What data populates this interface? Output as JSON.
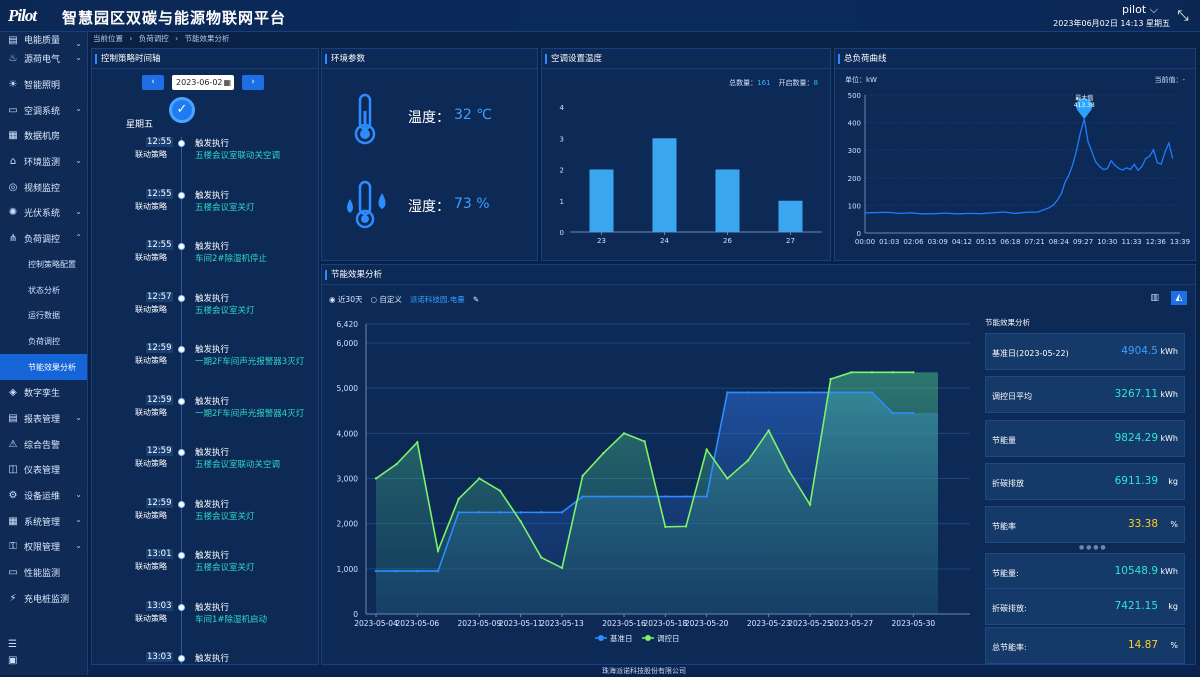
{
  "header": {
    "logo": "Pilot",
    "title": "智慧园区双碳与能源物联网平台",
    "user": "pilot ⌵",
    "datetime": "2023年06月02日 14:13 星期五"
  },
  "sidebar": {
    "items": [
      {
        "label": "电能质量",
        "icon": "power-quality-icon",
        "chev": true
      },
      {
        "label": "源荷电气",
        "icon": "flame-icon",
        "chev": true
      },
      {
        "label": "智能照明",
        "icon": "bulb-icon",
        "chev": false
      },
      {
        "label": "空调系统",
        "icon": "ac-icon",
        "chev": true
      },
      {
        "label": "数据机房",
        "icon": "server-icon",
        "chev": false
      },
      {
        "label": "环境监测",
        "icon": "env-icon",
        "chev": true
      },
      {
        "label": "视频监控",
        "icon": "camera-icon",
        "chev": false
      },
      {
        "label": "光伏系统",
        "icon": "sun-icon",
        "chev": true
      },
      {
        "label": "负荷调控",
        "icon": "network-icon",
        "chev": true,
        "expanded": true
      }
    ],
    "subitems": [
      "控制策略配置",
      "状态分析",
      "运行数据",
      "负荷调控",
      "节能效果分析"
    ],
    "items2": [
      {
        "label": "数字孪生",
        "icon": "twin-icon",
        "chev": false
      },
      {
        "label": "报表管理",
        "icon": "report-icon",
        "chev": true
      },
      {
        "label": "综合告警",
        "icon": "alarm-icon",
        "chev": false
      },
      {
        "label": "仪表管理",
        "icon": "meter-icon",
        "chev": false
      },
      {
        "label": "设备运维",
        "icon": "wrench-icon",
        "chev": true
      },
      {
        "label": "系统管理",
        "icon": "system-icon",
        "chev": true
      },
      {
        "label": "权限管理",
        "icon": "key-icon",
        "chev": true
      },
      {
        "label": "性能监测",
        "icon": "monitor-icon",
        "chev": false
      },
      {
        "label": "充电桩监测",
        "icon": "charger-icon",
        "chev": false
      }
    ]
  },
  "breadcrumb": [
    "当前位置",
    "›",
    "负荷调控",
    "›",
    "节能效果分析"
  ],
  "timeline": {
    "title": "控制策略时间轴",
    "date": "2023-06-02",
    "prev": "‹",
    "next": "›",
    "weekday": "星期五",
    "items": [
      {
        "time": "12:55",
        "strategy": "联动策略",
        "action": "触发执行",
        "desc": "五楼会议室联动关空调"
      },
      {
        "time": "12:55",
        "strategy": "联动策略",
        "action": "触发执行",
        "desc": "五楼会议室关灯"
      },
      {
        "time": "12:55",
        "strategy": "联动策略",
        "action": "触发执行",
        "desc": "车间2#除湿机停止"
      },
      {
        "time": "12:57",
        "strategy": "联动策略",
        "action": "触发执行",
        "desc": "五楼会议室关灯"
      },
      {
        "time": "12:59",
        "strategy": "联动策略",
        "action": "触发执行",
        "desc": "一期2F车间声光报警器3灭灯"
      },
      {
        "time": "12:59",
        "strategy": "联动策略",
        "action": "触发执行",
        "desc": "一期2F车间声光报警器4灭灯"
      },
      {
        "time": "12:59",
        "strategy": "联动策略",
        "action": "触发执行",
        "desc": "五楼会议室联动关空调"
      },
      {
        "time": "12:59",
        "strategy": "联动策略",
        "action": "触发执行",
        "desc": "五楼会议室关灯"
      },
      {
        "time": "13:01",
        "strategy": "联动策略",
        "action": "触发执行",
        "desc": "五楼会议室关灯"
      },
      {
        "time": "13:03",
        "strategy": "联动策略",
        "action": "触发执行",
        "desc": "车间1#除湿机启动"
      },
      {
        "time": "13:03",
        "strategy": "",
        "action": "触发执行",
        "desc": ""
      }
    ]
  },
  "env": {
    "title": "环境参数",
    "temp_label": "温度：",
    "temp_value": "32 ℃",
    "hum_label": "湿度：",
    "hum_value": "73 %"
  },
  "ac": {
    "title": "空调设置温度",
    "total_label": "总数量：",
    "total": "161",
    "on_label": "开启数量：",
    "on": "8"
  },
  "load": {
    "title": "总负荷曲线",
    "unit": "单位：kW",
    "current_label": "当前值：",
    "current": "-",
    "max_label": "最大值",
    "max_value": "413.38"
  },
  "eff": {
    "title": "节能效果分析",
    "radio1": "近30天",
    "radio2": "自定义",
    "link": "派诺科技园.电量",
    "side_title": "节能效果分析",
    "rows": [
      {
        "k": "基准日(2023-05-22)",
        "v": "4904.5",
        "u": "kWh",
        "c": "#3aa0ff"
      },
      {
        "k": "调控日平均",
        "v": "3267.11",
        "u": "kWh",
        "c": "#2fe6d2"
      },
      {
        "k": "节能量",
        "v": "9824.29",
        "u": "kWh",
        "c": "#2fe6d2"
      },
      {
        "k": "折碳排放",
        "v": "6911.39",
        "u": "kg",
        "c": "#2fe6d2"
      },
      {
        "k": "节能率",
        "v": "33.38",
        "u": "%",
        "c": "#ffd11a"
      },
      {
        "k": "节能量:",
        "v": "10548.9",
        "u": "kWh",
        "c": "#2fe6d2"
      },
      {
        "k": "折碳排放:",
        "v": "7421.15",
        "u": "kg",
        "c": "#2fe6d2"
      },
      {
        "k": "总节能率:",
        "v": "14.87",
        "u": "%",
        "c": "#ffd11a"
      }
    ]
  },
  "footer": "珠海派诺科技股份有限公司",
  "chart_data": [
    {
      "type": "bar",
      "title": "空调设置温度",
      "categories": [
        "23",
        "24",
        "26",
        "27"
      ],
      "values": [
        2,
        3,
        2,
        1
      ],
      "ylim": [
        0,
        4
      ],
      "color": "#3ba6f0"
    },
    {
      "type": "line",
      "title": "总负荷曲线",
      "ylabel": "kW",
      "ylim": [
        0,
        500
      ],
      "xticks": [
        "00:00",
        "01:03",
        "02:06",
        "03:09",
        "04:12",
        "05:15",
        "06:18",
        "07:21",
        "08:24",
        "09:27",
        "10:30",
        "11:33",
        "12:36",
        "13:39"
      ],
      "x_minutes": [
        0,
        30,
        60,
        90,
        120,
        150,
        180,
        210,
        240,
        270,
        300,
        330,
        360,
        390,
        420,
        450,
        480,
        490,
        500,
        510,
        520,
        530,
        540,
        550,
        560,
        570,
        580,
        590,
        600,
        610,
        620,
        630,
        640,
        650,
        660,
        670,
        680,
        690,
        700,
        710,
        720,
        730,
        740,
        750,
        760,
        770,
        780,
        790,
        800
      ],
      "values": [
        75,
        74,
        73,
        72,
        72,
        71,
        70,
        70,
        70,
        70,
        72,
        73,
        74,
        72,
        74,
        78,
        92,
        100,
        120,
        140,
        185,
        210,
        245,
        300,
        360,
        413,
        330,
        290,
        260,
        240,
        225,
        235,
        260,
        250,
        235,
        225,
        240,
        230,
        245,
        230,
        240,
        265,
        280,
        300,
        260,
        250,
        290,
        330,
        270
      ],
      "annotations": [
        {
          "label": "最大值",
          "value": 413.38
        }
      ],
      "color": "#1e7bff"
    },
    {
      "type": "area",
      "title": "节能效果分析",
      "ylim": [
        0,
        6420
      ],
      "yticks": [
        0,
        1000,
        2000,
        3000,
        4000,
        5000,
        6000,
        6420
      ],
      "categories": [
        "2023-05-04",
        "2023-05-05",
        "2023-05-06",
        "2023-05-07",
        "2023-05-08",
        "2023-05-09",
        "2023-05-10",
        "2023-05-11",
        "2023-05-12",
        "2023-05-13",
        "2023-05-14",
        "2023-05-15",
        "2023-05-16",
        "2023-05-17",
        "2023-05-18",
        "2023-05-19",
        "2023-05-20",
        "2023-05-21",
        "2023-05-22",
        "2023-05-23",
        "2023-05-24",
        "2023-05-25",
        "2023-05-26",
        "2023-05-27",
        "2023-05-28",
        "2023-05-29",
        "2023-05-30",
        "2023-05-31"
      ],
      "xticks": [
        "2023-05-04",
        "2023-05-06",
        "2023-05-09",
        "2023-05-11",
        "2023-05-13",
        "2023-05-16",
        "2023-05-18",
        "2023-05-20",
        "2023-05-23",
        "2023-05-25",
        "2023-05-27",
        "2023-05-30"
      ],
      "series": [
        {
          "name": "基准日",
          "color": "#2d8cff",
          "values": [
            950,
            950,
            950,
            950,
            2250,
            2250,
            2250,
            2250,
            2250,
            2250,
            2600,
            2600,
            2600,
            2600,
            2600,
            2600,
            2600,
            4904,
            4904,
            4904,
            4904,
            4904,
            4904,
            4904,
            4904,
            4450,
            4450,
            4450
          ]
        },
        {
          "name": "调控日",
          "color": "#7cf36a",
          "values": [
            3000,
            3320,
            3800,
            1400,
            2550,
            3000,
            2730,
            2050,
            1250,
            1020,
            3060,
            3560,
            4000,
            3820,
            1930,
            1940,
            3640,
            3000,
            3400,
            4060,
            3160,
            2420,
            5200,
            5350,
            5350,
            5350,
            5350,
            5350
          ]
        }
      ]
    }
  ]
}
